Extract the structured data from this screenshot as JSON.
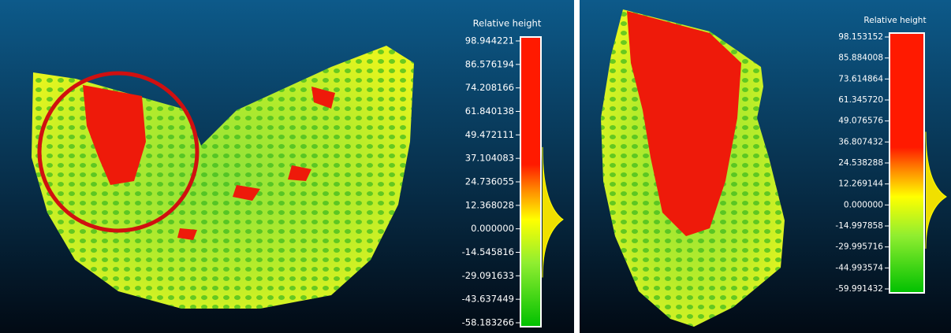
{
  "panels": [
    {
      "scale_title": "Relative height",
      "scale_labels": [
        "98.944221",
        "86.576194",
        "74.208166",
        "61.840138",
        "49.472111",
        "37.104083",
        "24.736055",
        "12.368028",
        "0.000000",
        "-14.545816",
        "-29.091633",
        "-43.637449",
        "-58.183266"
      ]
    },
    {
      "scale_title": "Relative height",
      "scale_labels": [
        "98.153152",
        "85.884008",
        "73.614864",
        "61.345720",
        "49.076576",
        "36.807432",
        "24.538288",
        "12.269144",
        "0.000000",
        "-14.997858",
        "-29.995716",
        "-44.993574",
        "-59.991432"
      ]
    }
  ]
}
